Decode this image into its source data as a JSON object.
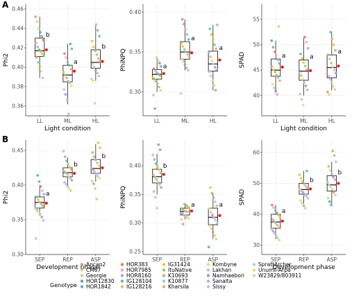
{
  "panel_labels": [
    "A",
    "B"
  ],
  "legend": {
    "title": "Genotype",
    "entries": [
      {
        "name": "Ancap2",
        "color": "#b7a88a"
      },
      {
        "name": "CM67",
        "color": "#e8c87c"
      },
      {
        "name": "Georgie",
        "color": "#c9d37a"
      },
      {
        "name": "HOR12830",
        "color": "#4aa8b6"
      },
      {
        "name": "HOR1842",
        "color": "#7aa0d4"
      },
      {
        "name": "HOR383",
        "color": "#e07b5c"
      },
      {
        "name": "HOR7985",
        "color": "#f2a3b4"
      },
      {
        "name": "HOR8160",
        "color": "#a7a4d8"
      },
      {
        "name": "IG128104",
        "color": "#5bbf9a"
      },
      {
        "name": "IG128216",
        "color": "#e6b85c"
      },
      {
        "name": "IG31424",
        "color": "#f0c23b"
      },
      {
        "name": "ItuNative",
        "color": "#92c56e"
      },
      {
        "name": "K10693",
        "color": "#e9a36a"
      },
      {
        "name": "K10877",
        "color": "#9fc4e8"
      },
      {
        "name": "Kharsila",
        "color": "#d9b26f"
      },
      {
        "name": "Kombyne",
        "color": "#f5d27c"
      },
      {
        "name": "Lakhan",
        "color": "#b9c3c9"
      },
      {
        "name": "Namhaebori",
        "color": "#9a9ad0"
      },
      {
        "name": "Sanalta",
        "color": "#e3a0c8"
      },
      {
        "name": "Sissy",
        "color": "#c7b7e2"
      },
      {
        "name": "SprattArcher",
        "color": "#a8d8c4"
      },
      {
        "name": "Unumli-Arpa",
        "color": "#f2d86c"
      },
      {
        "name": "W23829/803911",
        "color": "#d6cfa0"
      }
    ]
  },
  "chart_data": [
    {
      "type": "box",
      "panel": "A",
      "ylabel": "Phi2",
      "xlabel": "Light condition",
      "categories": [
        "LL",
        "ML",
        "HL"
      ],
      "ylim": [
        0.35,
        0.465
      ],
      "yticks": [
        0.36,
        0.38,
        0.4,
        0.42,
        0.44,
        0.46
      ],
      "boxes": [
        {
          "q1": 0.411,
          "median": 0.417,
          "q3": 0.43,
          "min": 0.389,
          "max": 0.452,
          "mean": 0.418,
          "letter": "b",
          "points": [
            0.452,
            0.447,
            0.44,
            0.436,
            0.432,
            0.428,
            0.425,
            0.421,
            0.418,
            0.416,
            0.414,
            0.412,
            0.41,
            0.405,
            0.401,
            0.396,
            0.389
          ]
        },
        {
          "q1": 0.385,
          "median": 0.392,
          "q3": 0.402,
          "min": 0.362,
          "max": 0.424,
          "mean": 0.396,
          "letter": "a",
          "points": [
            0.424,
            0.419,
            0.414,
            0.41,
            0.405,
            0.402,
            0.398,
            0.395,
            0.392,
            0.389,
            0.386,
            0.384,
            0.381,
            0.377,
            0.372,
            0.366,
            0.352
          ]
        },
        {
          "q1": 0.399,
          "median": 0.405,
          "q3": 0.418,
          "min": 0.386,
          "max": 0.444,
          "mean": 0.406,
          "letter": "b",
          "points": [
            0.444,
            0.438,
            0.432,
            0.427,
            0.421,
            0.417,
            0.413,
            0.409,
            0.406,
            0.403,
            0.4,
            0.397,
            0.394,
            0.391,
            0.388,
            0.386,
            0.363
          ]
        }
      ]
    },
    {
      "type": "box",
      "panel": "A",
      "ylabel": "PhiNPQ",
      "xlabel": "",
      "categories": [
        "LL",
        "ML",
        "HL"
      ],
      "ylim": [
        0.27,
        0.41
      ],
      "yticks": [
        0.3,
        0.35,
        0.4
      ],
      "boxes": [
        {
          "q1": 0.316,
          "median": 0.322,
          "q3": 0.328,
          "min": 0.3,
          "max": 0.343,
          "mean": 0.323,
          "letter": "a",
          "points": [
            0.343,
            0.339,
            0.336,
            0.332,
            0.329,
            0.326,
            0.324,
            0.322,
            0.32,
            0.318,
            0.316,
            0.313,
            0.31,
            0.306,
            0.302,
            0.296,
            0.279
          ]
        },
        {
          "q1": 0.341,
          "median": 0.35,
          "q3": 0.363,
          "min": 0.327,
          "max": 0.391,
          "mean": 0.349,
          "letter": "a",
          "points": [
            0.391,
            0.385,
            0.378,
            0.372,
            0.366,
            0.361,
            0.357,
            0.353,
            0.35,
            0.347,
            0.344,
            0.341,
            0.338,
            0.334,
            0.33,
            0.327,
            0.298
          ]
        },
        {
          "q1": 0.326,
          "median": 0.335,
          "q3": 0.351,
          "min": 0.302,
          "max": 0.384,
          "mean": 0.34,
          "letter": "a",
          "points": [
            0.384,
            0.379,
            0.372,
            0.366,
            0.359,
            0.354,
            0.349,
            0.344,
            0.339,
            0.335,
            0.331,
            0.328,
            0.325,
            0.32,
            0.314,
            0.308,
            0.302
          ]
        }
      ]
    },
    {
      "type": "box",
      "panel": "A",
      "ylabel": "SPAD",
      "xlabel": "Light condition",
      "categories": [
        "LL",
        "ML",
        "HL"
      ],
      "ylim": [
        36,
        58
      ],
      "yticks": [
        40,
        45,
        50,
        55
      ],
      "boxes": [
        {
          "q1": 43.8,
          "median": 45.0,
          "q3": 47.2,
          "min": 40.5,
          "max": 50.8,
          "mean": 45.6,
          "letter": "a",
          "points": [
            53.6,
            50.8,
            49.5,
            48.6,
            47.8,
            47.0,
            46.3,
            45.7,
            45.1,
            44.6,
            44.0,
            43.5,
            42.9,
            42.2,
            41.5,
            40.9,
            40.2
          ]
        },
        {
          "q1": 43.0,
          "median": 44.8,
          "q3": 47.0,
          "min": 40.0,
          "max": 51.5,
          "mean": 44.9,
          "letter": "a",
          "points": [
            51.5,
            50.5,
            49.3,
            48.2,
            47.3,
            46.5,
            45.8,
            45.1,
            44.5,
            43.9,
            43.2,
            42.6,
            41.9,
            41.1,
            40.3,
            39.2,
            38.1
          ]
        },
        {
          "q1": 43.5,
          "median": 45.5,
          "q3": 48.0,
          "min": 41.0,
          "max": 52.5,
          "mean": 45.8,
          "letter": "a",
          "points": [
            52.5,
            51.2,
            50.0,
            48.9,
            48.0,
            47.2,
            46.4,
            45.7,
            45.0,
            44.4,
            43.8,
            43.2,
            42.5,
            41.8,
            41.2,
            40.7,
            40.2
          ]
        }
      ]
    },
    {
      "type": "box",
      "panel": "B",
      "ylabel": "Phi2",
      "xlabel": "Development phase",
      "categories": [
        "SEP",
        "REP",
        "ASP"
      ],
      "ylim": [
        0.3,
        0.465
      ],
      "yticks": [
        0.3,
        0.35,
        0.4,
        0.45
      ],
      "boxes": [
        {
          "q1": 0.367,
          "median": 0.375,
          "q3": 0.383,
          "min": 0.356,
          "max": 0.4,
          "mean": 0.374,
          "letter": "a",
          "points": [
            0.414,
            0.405,
            0.398,
            0.392,
            0.387,
            0.383,
            0.379,
            0.376,
            0.373,
            0.37,
            0.367,
            0.364,
            0.361,
            0.358,
            0.354,
            0.349,
            0.323
          ]
        },
        {
          "q1": 0.412,
          "median": 0.418,
          "q3": 0.425,
          "min": 0.398,
          "max": 0.44,
          "mean": 0.417,
          "letter": "b",
          "points": [
            0.449,
            0.441,
            0.435,
            0.43,
            0.426,
            0.423,
            0.42,
            0.418,
            0.416,
            0.413,
            0.41,
            0.407,
            0.404,
            0.401,
            0.398,
            0.395,
            0.392
          ]
        },
        {
          "q1": 0.417,
          "median": 0.424,
          "q3": 0.437,
          "min": 0.405,
          "max": 0.459,
          "mean": 0.425,
          "letter": "b",
          "points": [
            0.461,
            0.454,
            0.447,
            0.441,
            0.436,
            0.432,
            0.428,
            0.425,
            0.422,
            0.419,
            0.416,
            0.413,
            0.41,
            0.406,
            0.402,
            0.395,
            0.38
          ]
        }
      ]
    },
    {
      "type": "box",
      "panel": "B",
      "ylabel": "PhiNPQ",
      "xlabel": "",
      "categories": [
        "SEP",
        "REP",
        "ASP"
      ],
      "ylim": [
        0.245,
        0.445
      ],
      "yticks": [
        0.25,
        0.3,
        0.35,
        0.4
      ],
      "boxes": [
        {
          "q1": 0.37,
          "median": 0.381,
          "q3": 0.394,
          "min": 0.35,
          "max": 0.421,
          "mean": 0.385,
          "letter": "b",
          "points": [
            0.437,
            0.428,
            0.419,
            0.411,
            0.404,
            0.398,
            0.393,
            0.388,
            0.384,
            0.38,
            0.376,
            0.372,
            0.367,
            0.362,
            0.355,
            0.345,
            0.326
          ]
        },
        {
          "q1": 0.314,
          "median": 0.32,
          "q3": 0.326,
          "min": 0.306,
          "max": 0.333,
          "mean": 0.321,
          "letter": "a",
          "points": [
            0.333,
            0.331,
            0.329,
            0.327,
            0.325,
            0.323,
            0.321,
            0.32,
            0.319,
            0.317,
            0.316,
            0.314,
            0.312,
            0.31,
            0.308,
            0.306,
            0.298
          ]
        },
        {
          "q1": 0.297,
          "median": 0.31,
          "q3": 0.326,
          "min": 0.272,
          "max": 0.352,
          "mean": 0.313,
          "letter": "a",
          "points": [
            0.362,
            0.352,
            0.344,
            0.337,
            0.33,
            0.325,
            0.319,
            0.314,
            0.309,
            0.305,
            0.3,
            0.295,
            0.29,
            0.284,
            0.278,
            0.272,
            0.258
          ]
        }
      ]
    },
    {
      "type": "box",
      "panel": "B",
      "ylabel": "SPAD",
      "xlabel": "Development phase",
      "categories": [
        "SEP",
        "REP",
        "ASP"
      ],
      "ylim": [
        27,
        64
      ],
      "yticks": [
        30,
        40,
        50,
        60
      ],
      "boxes": [
        {
          "q1": 35.5,
          "median": 37.5,
          "q3": 40.0,
          "min": 32.0,
          "max": 43.0,
          "mean": 37.8,
          "letter": "a",
          "points": [
            43.0,
            42.2,
            41.3,
            40.5,
            39.8,
            39.0,
            38.3,
            37.7,
            37.1,
            36.5,
            35.9,
            35.2,
            34.5,
            33.8,
            33.0,
            32.3,
            31.6
          ]
        },
        {
          "q1": 46.5,
          "median": 48.0,
          "q3": 50.0,
          "min": 43.5,
          "max": 54.0,
          "mean": 48.2,
          "letter": "b",
          "points": [
            54.0,
            52.8,
            51.6,
            50.6,
            49.8,
            49.1,
            48.5,
            48.0,
            47.5,
            47.0,
            46.4,
            45.8,
            45.1,
            44.4,
            43.6,
            42.8,
            42.0
          ]
        },
        {
          "q1": 47.5,
          "median": 49.5,
          "q3": 52.5,
          "min": 43.0,
          "max": 57.0,
          "mean": 50.0,
          "letter": "b",
          "points": [
            60.5,
            59.0,
            57.0,
            55.5,
            54.2,
            53.1,
            52.1,
            51.2,
            50.4,
            49.6,
            48.8,
            48.0,
            47.1,
            46.2,
            45.2,
            44.1,
            43.0
          ]
        }
      ]
    }
  ]
}
